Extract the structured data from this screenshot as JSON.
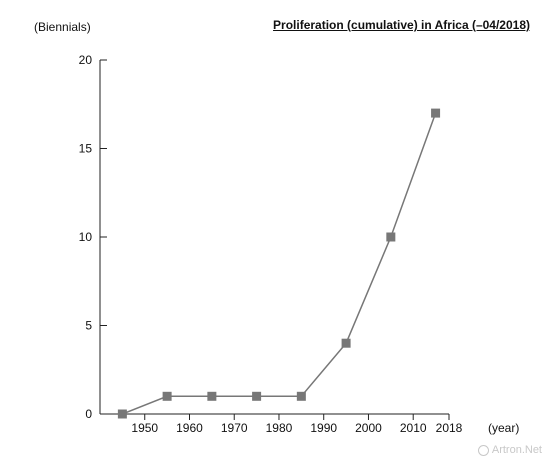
{
  "chart_data": {
    "type": "line",
    "title": "Proliferation (cumulative) in Africa (–04/2018)",
    "ylabel": "(Biennials)",
    "xlabel": "(year)",
    "x_ticks": [
      "1950",
      "1960",
      "1970",
      "1980",
      "1990",
      "2000",
      "2010",
      "2018"
    ],
    "y_ticks": [
      "0",
      "5",
      "10",
      "15",
      "20"
    ],
    "xlim": [
      1940,
      2018
    ],
    "ylim": [
      0,
      20
    ],
    "grid": false,
    "series": [
      {
        "x": [
          1945,
          1955,
          1965,
          1975,
          1985,
          1995,
          2005,
          2015
        ],
        "values": [
          0,
          1,
          1,
          1,
          1,
          4,
          10,
          17
        ],
        "color": "#777777",
        "marker": "square"
      }
    ]
  },
  "watermark": {
    "text": "Artron.Net"
  }
}
